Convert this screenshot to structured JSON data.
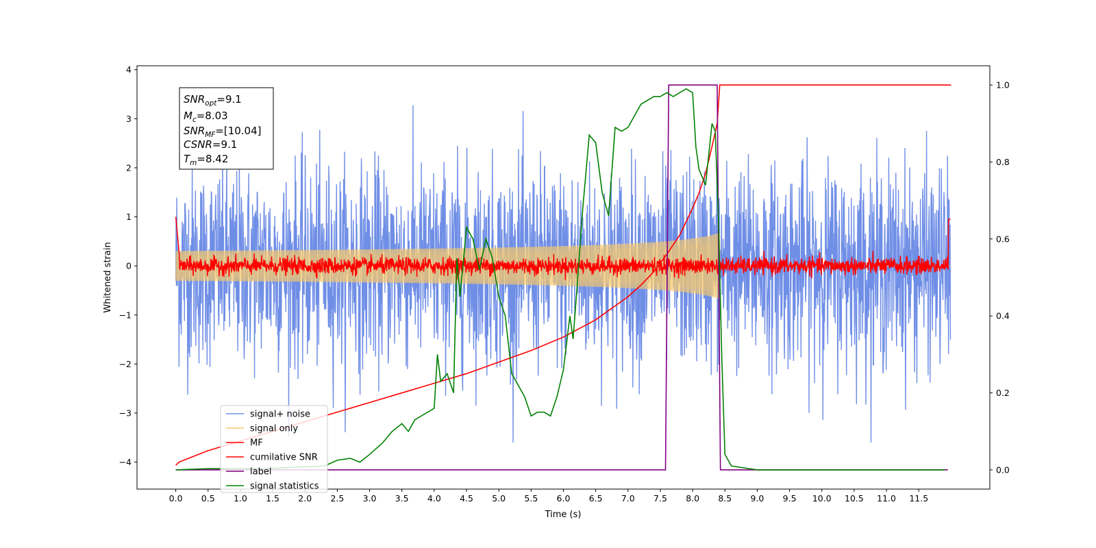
{
  "chart_data": {
    "type": "line",
    "xlabel": "Time (s)",
    "ylabel": "Whitened strain",
    "xlim": [
      -0.6,
      12.6
    ],
    "ylim": [
      -4.55,
      4.08
    ],
    "ylim_right": [
      -0.05,
      1.05
    ],
    "x_ticks": [
      "0.0",
      "0.5",
      "1.0",
      "1.5",
      "2.0",
      "2.5",
      "3.0",
      "3.5",
      "4.0",
      "4.5",
      "5.0",
      "5.5",
      "6.0",
      "6.5",
      "7.0",
      "7.5",
      "8.0",
      "8.5",
      "9.0",
      "9.5",
      "10.0",
      "10.5",
      "11.0",
      "11.5"
    ],
    "y_ticks_left": [
      "4",
      "3",
      "2",
      "1",
      "0",
      "−1",
      "−2",
      "−3",
      "−4"
    ],
    "y_ticks_right": [
      "1.0",
      "0.8",
      "0.6",
      "0.4",
      "0.2",
      "0.0"
    ],
    "grid": false,
    "legend_position": "bottom-left",
    "colors": {
      "signal_noise": "#6f8ee6",
      "signal_only": "#f7c86b",
      "mf": "#ff0000",
      "cumulative_snr": "#ff0000",
      "label": "#800080",
      "signal_statistics": "#008000"
    },
    "annotation": {
      "snr_opt": {
        "base": "SNR",
        "sub": "opt",
        "value": "=9.1"
      },
      "mc": {
        "base": "M",
        "sub": "c",
        "value": "=8.03"
      },
      "snr_mf": {
        "base": "SNR",
        "sub": "MF",
        "value": "=[10.04]"
      },
      "csnr": {
        "base": "CSNR",
        "value": "=9.1"
      },
      "tm": {
        "base": "T",
        "sub": "m",
        "value": "=8.42"
      }
    },
    "series": [
      {
        "name": "signal+ noise",
        "axis": "left",
        "description": "whitened noise with std ~1.0 over 0 to 12 s"
      },
      {
        "name": "signal only",
        "axis": "left",
        "description": "chirp amplitude envelope growing to ~0.65 at 8.42 s then zero"
      },
      {
        "name": "MF",
        "axis": "left",
        "description": "matched-filter output, noise ~0.1 around 0, ~1 at both ends"
      },
      {
        "name": "cumilative SNR",
        "axis": "right",
        "x": [
          0.0,
          0.05,
          0.2,
          0.5,
          1.0,
          1.5,
          2.0,
          2.5,
          3.0,
          3.5,
          4.0,
          4.5,
          5.0,
          5.5,
          6.0,
          6.5,
          7.0,
          7.2,
          7.4,
          7.6,
          7.8,
          8.0,
          8.1,
          8.2,
          8.3,
          8.38,
          8.42,
          8.5,
          12.0
        ],
        "y": [
          0.012,
          0.02,
          0.03,
          0.05,
          0.075,
          0.1,
          0.125,
          0.15,
          0.175,
          0.2,
          0.225,
          0.25,
          0.28,
          0.31,
          0.345,
          0.39,
          0.45,
          0.48,
          0.515,
          0.56,
          0.61,
          0.68,
          0.72,
          0.77,
          0.84,
          0.9,
          1.0,
          1.0,
          1.0
        ]
      },
      {
        "name": "label",
        "axis": "right",
        "x": [
          0.0,
          7.58,
          7.63,
          8.38,
          8.43,
          11.95
        ],
        "y": [
          0.0,
          0.0,
          1.0,
          1.0,
          0.0,
          0.0
        ]
      },
      {
        "name": "signal statistics",
        "axis": "right",
        "x": [
          0.0,
          0.5,
          1.0,
          1.5,
          2.0,
          2.3,
          2.5,
          2.7,
          2.85,
          3.0,
          3.2,
          3.35,
          3.5,
          3.6,
          3.7,
          3.8,
          3.9,
          4.0,
          4.05,
          4.1,
          4.2,
          4.3,
          4.35,
          4.4,
          4.5,
          4.6,
          4.7,
          4.8,
          4.9,
          5.0,
          5.1,
          5.2,
          5.3,
          5.4,
          5.5,
          5.6,
          5.7,
          5.8,
          5.9,
          6.0,
          6.1,
          6.15,
          6.2,
          6.3,
          6.4,
          6.5,
          6.6,
          6.7,
          6.8,
          6.9,
          7.0,
          7.1,
          7.2,
          7.3,
          7.4,
          7.5,
          7.6,
          7.7,
          7.8,
          7.9,
          8.0,
          8.05,
          8.1,
          8.2,
          8.3,
          8.35,
          8.4,
          8.45,
          8.5,
          8.6,
          9.0,
          11.9
        ],
        "y": [
          0.0,
          0.003,
          0.003,
          0.004,
          0.008,
          0.01,
          0.025,
          0.03,
          0.02,
          0.04,
          0.07,
          0.1,
          0.12,
          0.1,
          0.13,
          0.14,
          0.15,
          0.16,
          0.3,
          0.23,
          0.25,
          0.2,
          0.55,
          0.45,
          0.63,
          0.6,
          0.52,
          0.6,
          0.55,
          0.45,
          0.4,
          0.25,
          0.22,
          0.19,
          0.14,
          0.15,
          0.15,
          0.14,
          0.19,
          0.26,
          0.4,
          0.34,
          0.45,
          0.68,
          0.87,
          0.85,
          0.72,
          0.66,
          0.89,
          0.88,
          0.89,
          0.92,
          0.95,
          0.96,
          0.97,
          0.97,
          0.98,
          0.97,
          0.98,
          0.99,
          0.98,
          0.84,
          0.78,
          0.74,
          0.9,
          0.88,
          0.65,
          0.3,
          0.04,
          0.01,
          0.0,
          0.0
        ]
      }
    ]
  }
}
